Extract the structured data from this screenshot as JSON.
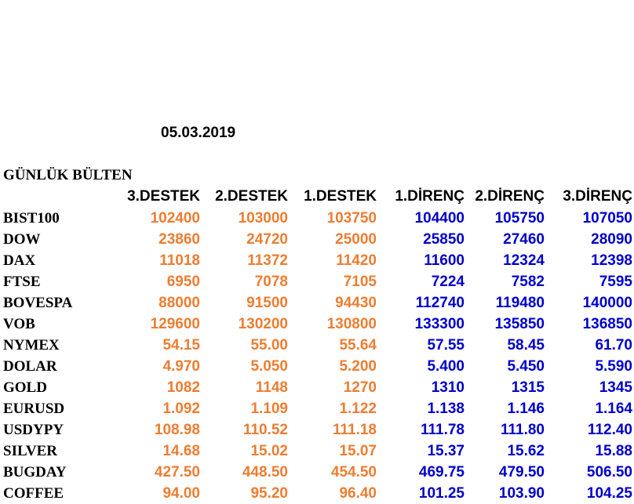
{
  "date": "05.03.2019",
  "title": "GÜNLÜK BÜLTEN",
  "colors": {
    "support": "#ed7d31",
    "resistance": "#0000cc",
    "label": "#000000"
  },
  "headers": [
    "3.DESTEK",
    "2.DESTEK",
    "1.DESTEK",
    "1.DİRENÇ",
    "2.DİRENÇ",
    "3.DİRENÇ"
  ],
  "rows": [
    {
      "name": "BIST100",
      "values": [
        "102400",
        "103000",
        "103750",
        "104400",
        "105750",
        "107050"
      ]
    },
    {
      "name": "DOW",
      "values": [
        "23860",
        "24720",
        "25000",
        "25850",
        "27460",
        "28090"
      ]
    },
    {
      "name": "DAX",
      "values": [
        "11018",
        "11372",
        "11420",
        "11600",
        "12324",
        "12398"
      ]
    },
    {
      "name": "FTSE",
      "values": [
        "6950",
        "7078",
        "7105",
        "7224",
        "7582",
        "7595"
      ]
    },
    {
      "name": "BOVESPA",
      "values": [
        "88000",
        "91500",
        "94430",
        "112740",
        "119480",
        "140000"
      ]
    },
    {
      "name": "VOB",
      "values": [
        "129600",
        "130200",
        "130800",
        "133300",
        "135850",
        "136850"
      ]
    },
    {
      "name": "NYMEX",
      "values": [
        "54.15",
        "55.00",
        "55.64",
        "57.55",
        "58.45",
        "61.70"
      ]
    },
    {
      "name": "DOLAR",
      "values": [
        "4.970",
        "5.050",
        "5.200",
        "5.400",
        "5.450",
        "5.590"
      ]
    },
    {
      "name": "GOLD",
      "values": [
        "1082",
        "1148",
        "1270",
        "1310",
        "1315",
        "1345"
      ]
    },
    {
      "name": "EURUSD",
      "values": [
        "1.092",
        "1.109",
        "1.122",
        "1.138",
        "1.146",
        "1.164"
      ]
    },
    {
      "name": "USDYPY",
      "values": [
        "108.98",
        "110.52",
        "111.18",
        "111.78",
        "111.80",
        "112.40"
      ]
    },
    {
      "name": "SILVER",
      "values": [
        "14.68",
        "15.02",
        "15.07",
        "15.37",
        "15.62",
        "15.88"
      ]
    },
    {
      "name": "BUGDAY",
      "values": [
        "427.50",
        "448.50",
        "454.50",
        "469.75",
        "479.50",
        "506.50"
      ]
    },
    {
      "name": "COFFEE",
      "values": [
        "94.00",
        "95.20",
        "96.40",
        "101.25",
        "103.90",
        "104.25"
      ]
    }
  ]
}
